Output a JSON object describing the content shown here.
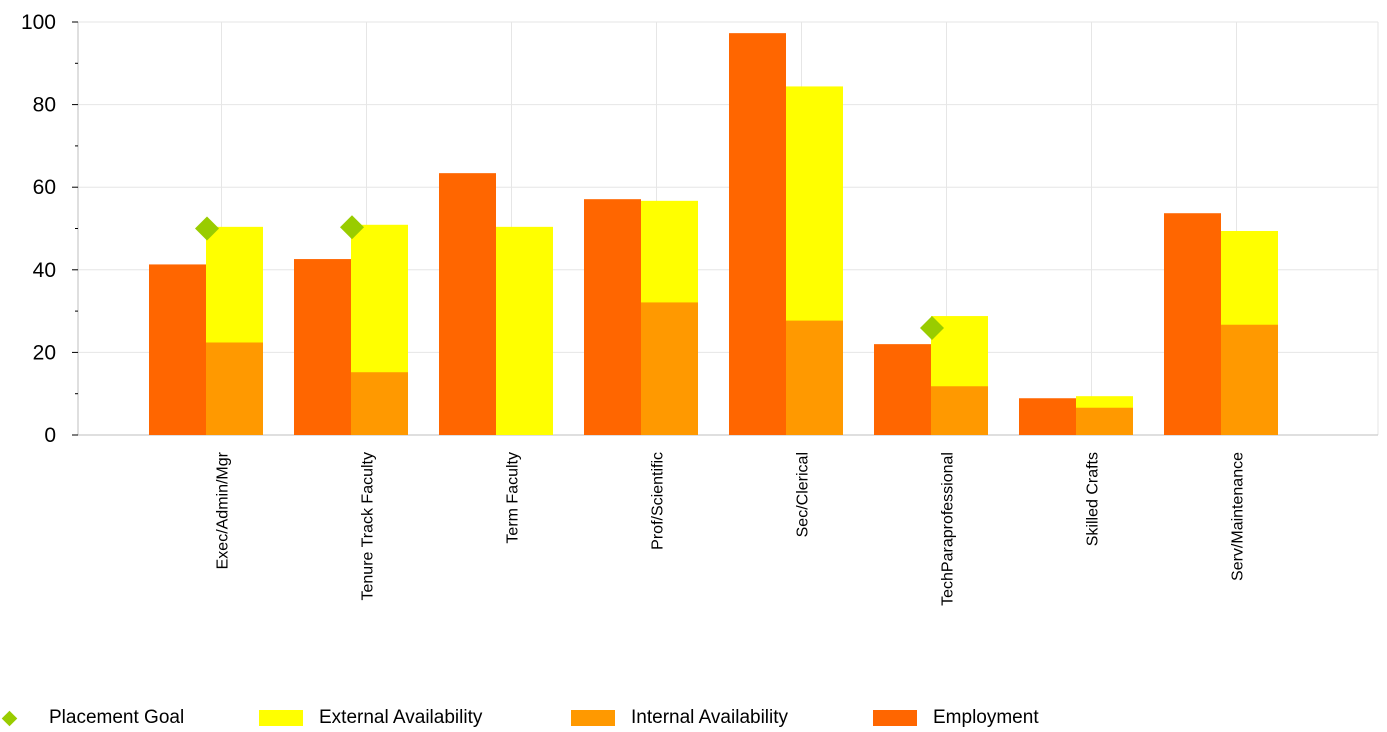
{
  "chart_data": {
    "type": "bar",
    "categories": [
      "Exec/Admin/Mgr",
      "Tenure Track Faculty",
      "Term Faculty",
      "Prof/Scientific",
      "Sec/Clerical",
      "TechParaprofessional",
      "Skilled Crafts",
      "Serv/Maintenance"
    ],
    "series": [
      {
        "name": "Employment",
        "values": [
          41.3,
          42.6,
          63.4,
          57.1,
          97.3,
          22.0,
          8.9,
          53.7
        ],
        "color": "#FF6600"
      },
      {
        "name": "Internal Availability",
        "values": [
          22.4,
          15.2,
          0,
          32.1,
          27.7,
          11.8,
          6.6,
          26.7
        ],
        "color": "#FF9900"
      },
      {
        "name": "External Availability",
        "values": [
          50.4,
          50.9,
          50.4,
          56.7,
          84.4,
          28.8,
          9.4,
          49.4
        ],
        "color": "#FFFF00"
      },
      {
        "name": "Placement Goal",
        "values": [
          50.0,
          50.3,
          null,
          null,
          null,
          25.9,
          null,
          null
        ],
        "color": "#99CC00"
      }
    ],
    "ylim": [
      0,
      100
    ],
    "yticks": [
      "0",
      "20",
      "40",
      "60",
      "80",
      "100"
    ],
    "grid": true,
    "legend_position": "bottom",
    "xlabel": "",
    "ylabel": "",
    "title": ""
  }
}
